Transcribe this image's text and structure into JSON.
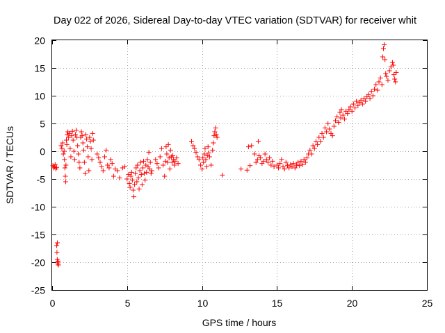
{
  "chart_data": {
    "type": "scatter",
    "title": "Day 022 of 2026, Sidereal Day-to-day VTEC variation (SDTVAR) for receiver whit",
    "xlabel": "GPS time / hours",
    "ylabel": "SDTVAR / TECUs",
    "xlim": [
      0,
      25
    ],
    "ylim": [
      -25,
      20
    ],
    "x_ticks": [
      0,
      5,
      10,
      15,
      20,
      25
    ],
    "x_tick_labels": [
      "0",
      "5",
      "10",
      "15",
      "20",
      "25"
    ],
    "y_ticks": [
      -25,
      -20,
      -15,
      -10,
      -5,
      0,
      5,
      10,
      15,
      20
    ],
    "y_tick_labels": [
      "-25",
      "-20",
      "-15",
      "-10",
      "-5",
      "0",
      "5",
      "10",
      "15",
      "20"
    ],
    "grid": true,
    "marker": "plus",
    "series": [
      {
        "name": "SDTVAR",
        "color": "#ff0000",
        "points": [
          [
            0.05,
            -2.6
          ],
          [
            0.1,
            -3.0
          ],
          [
            0.15,
            -2.8
          ],
          [
            0.2,
            -2.4
          ],
          [
            0.25,
            -3.2
          ],
          [
            0.3,
            -2.9
          ],
          [
            0.3,
            -17.0
          ],
          [
            0.32,
            -18.2
          ],
          [
            0.34,
            -19.5
          ],
          [
            0.36,
            -20.0
          ],
          [
            0.38,
            -20.3
          ],
          [
            0.4,
            -19.8
          ],
          [
            0.42,
            -20.5
          ],
          [
            0.35,
            -16.5
          ],
          [
            0.6,
            1.0
          ],
          [
            0.65,
            0.5
          ],
          [
            0.7,
            1.5
          ],
          [
            0.75,
            -0.5
          ],
          [
            0.8,
            0.0
          ],
          [
            0.82,
            -1.5
          ],
          [
            0.85,
            -3.0
          ],
          [
            0.88,
            -4.5
          ],
          [
            0.9,
            -5.5
          ],
          [
            0.92,
            -2.5
          ],
          [
            0.95,
            2.0
          ],
          [
            0.98,
            1.2
          ],
          [
            1.0,
            3.0
          ],
          [
            1.05,
            3.5
          ],
          [
            1.1,
            2.5
          ],
          [
            1.15,
            3.2
          ],
          [
            1.2,
            0.5
          ],
          [
            1.25,
            -1.0
          ],
          [
            1.3,
            2.8
          ],
          [
            1.35,
            3.6
          ],
          [
            1.4,
            2.0
          ],
          [
            1.45,
            0.0
          ],
          [
            1.5,
            -1.5
          ],
          [
            1.55,
            3.0
          ],
          [
            1.6,
            3.8
          ],
          [
            1.65,
            2.5
          ],
          [
            1.7,
            1.0
          ],
          [
            1.75,
            -0.5
          ],
          [
            1.8,
            -2.0
          ],
          [
            1.85,
            -3.0
          ],
          [
            1.9,
            2.5
          ],
          [
            1.95,
            3.5
          ],
          [
            2.0,
            2.8
          ],
          [
            2.05,
            1.5
          ],
          [
            2.1,
            0.2
          ],
          [
            2.15,
            -2.0
          ],
          [
            2.2,
            -4.0
          ],
          [
            2.25,
            3.0
          ],
          [
            2.3,
            2.2
          ],
          [
            2.35,
            0.8
          ],
          [
            2.4,
            -1.0
          ],
          [
            2.45,
            -3.5
          ],
          [
            2.5,
            2.5
          ],
          [
            2.55,
            1.8
          ],
          [
            2.6,
            0.5
          ],
          [
            2.65,
            -1.5
          ],
          [
            2.7,
            3.2
          ],
          [
            2.75,
            2.0
          ],
          [
            3.0,
            -0.5
          ],
          [
            3.1,
            -1.2
          ],
          [
            3.2,
            -2.0
          ],
          [
            3.3,
            -2.8
          ],
          [
            3.4,
            -3.5
          ],
          [
            3.5,
            -1.0
          ],
          [
            3.6,
            0.2
          ],
          [
            3.7,
            -2.5
          ],
          [
            3.8,
            -3.0
          ],
          [
            3.9,
            -1.5
          ],
          [
            4.0,
            -2.2
          ],
          [
            4.1,
            -4.5
          ],
          [
            4.2,
            -3.2
          ],
          [
            4.35,
            -3.5
          ],
          [
            4.5,
            -4.8
          ],
          [
            4.7,
            -3.0
          ],
          [
            4.85,
            -2.8
          ],
          [
            5.0,
            -5.0
          ],
          [
            5.1,
            -4.2
          ],
          [
            5.15,
            -5.8
          ],
          [
            5.2,
            -6.5
          ],
          [
            5.25,
            -4.5
          ],
          [
            5.3,
            -3.8
          ],
          [
            5.35,
            -5.2
          ],
          [
            5.4,
            -7.0
          ],
          [
            5.45,
            -8.2
          ],
          [
            5.5,
            -6.0
          ],
          [
            5.55,
            -4.0
          ],
          [
            5.6,
            -3.0
          ],
          [
            5.65,
            -5.5
          ],
          [
            5.7,
            -2.5
          ],
          [
            5.75,
            -4.8
          ],
          [
            5.8,
            -6.8
          ],
          [
            5.85,
            -3.5
          ],
          [
            5.9,
            -2.0
          ],
          [
            5.95,
            -4.2
          ],
          [
            6.0,
            -6.0
          ],
          [
            6.05,
            -3.0
          ],
          [
            6.1,
            -1.8
          ],
          [
            6.15,
            -4.0
          ],
          [
            6.2,
            -5.2
          ],
          [
            6.25,
            -2.5
          ],
          [
            6.3,
            -3.8
          ],
          [
            6.35,
            -1.5
          ],
          [
            6.4,
            -2.8
          ],
          [
            6.45,
            -0.2
          ],
          [
            6.5,
            -3.2
          ],
          [
            6.55,
            -2.0
          ],
          [
            6.6,
            -4.0
          ],
          [
            6.65,
            -3.5
          ],
          [
            6.9,
            -1.5
          ],
          [
            7.0,
            -2.2
          ],
          [
            7.1,
            -3.0
          ],
          [
            7.2,
            -1.0
          ],
          [
            7.3,
            0.5
          ],
          [
            7.4,
            -2.5
          ],
          [
            7.5,
            -4.5
          ],
          [
            7.55,
            -1.8
          ],
          [
            7.6,
            0.8
          ],
          [
            7.65,
            -0.5
          ],
          [
            7.7,
            -2.0
          ],
          [
            7.75,
            1.2
          ],
          [
            7.8,
            -1.2
          ],
          [
            7.85,
            -3.2
          ],
          [
            7.9,
            0.2
          ],
          [
            7.95,
            -1.0
          ],
          [
            8.0,
            -2.0
          ],
          [
            8.05,
            -0.8
          ],
          [
            8.1,
            -1.5
          ],
          [
            8.15,
            -2.5
          ],
          [
            8.2,
            -1.8
          ],
          [
            8.3,
            -1.2
          ],
          [
            8.4,
            -2.2
          ],
          [
            9.3,
            1.8
          ],
          [
            9.4,
            1.0
          ],
          [
            9.5,
            0.5
          ],
          [
            9.6,
            -0.2
          ],
          [
            9.7,
            -1.0
          ],
          [
            9.8,
            -1.5
          ],
          [
            9.9,
            -2.5
          ],
          [
            10.0,
            -3.2
          ],
          [
            10.05,
            -1.2
          ],
          [
            10.1,
            -2.0
          ],
          [
            10.15,
            -0.5
          ],
          [
            10.2,
            0.5
          ],
          [
            10.25,
            -1.5
          ],
          [
            10.3,
            -2.8
          ],
          [
            10.35,
            -0.8
          ],
          [
            10.4,
            0.8
          ],
          [
            10.45,
            -0.3
          ],
          [
            10.5,
            -1.0
          ],
          [
            10.6,
            -2.5
          ],
          [
            10.7,
            0.2
          ],
          [
            10.75,
            1.5
          ],
          [
            10.8,
            2.8
          ],
          [
            10.85,
            3.5
          ],
          [
            10.9,
            4.2
          ],
          [
            10.95,
            3.0
          ],
          [
            11.0,
            2.5
          ],
          [
            11.35,
            -4.3
          ],
          [
            12.6,
            -3.2
          ],
          [
            13.0,
            -3.4
          ],
          [
            13.2,
            -2.6
          ],
          [
            13.1,
            0.8
          ],
          [
            13.3,
            1.0
          ],
          [
            13.5,
            -0.5
          ],
          [
            13.6,
            -2.0
          ],
          [
            13.7,
            -1.5
          ],
          [
            13.75,
            1.8
          ],
          [
            13.8,
            -0.8
          ],
          [
            13.9,
            -1.2
          ],
          [
            14.0,
            -2.2
          ],
          [
            14.1,
            -1.8
          ],
          [
            14.2,
            -0.5
          ],
          [
            14.3,
            -1.5
          ],
          [
            14.4,
            -2.0
          ],
          [
            14.5,
            -1.2
          ],
          [
            14.6,
            -2.5
          ],
          [
            14.7,
            -1.8
          ],
          [
            14.8,
            -2.8
          ],
          [
            15.0,
            -2.5
          ],
          [
            15.1,
            -3.0
          ],
          [
            15.2,
            -2.2
          ],
          [
            15.3,
            -1.5
          ],
          [
            15.4,
            -2.8
          ],
          [
            15.5,
            -3.2
          ],
          [
            15.6,
            -2.0
          ],
          [
            15.7,
            -2.6
          ],
          [
            15.8,
            -3.0
          ],
          [
            15.9,
            -2.4
          ],
          [
            16.0,
            -2.8
          ],
          [
            16.1,
            -2.2
          ],
          [
            16.2,
            -3.0
          ],
          [
            16.3,
            -2.5
          ],
          [
            16.4,
            -2.0
          ],
          [
            16.5,
            -2.6
          ],
          [
            16.6,
            -1.8
          ],
          [
            16.7,
            -2.4
          ],
          [
            16.8,
            -1.5
          ],
          [
            16.9,
            -2.0
          ],
          [
            17.0,
            -1.2
          ],
          [
            17.1,
            -0.5
          ],
          [
            17.2,
            0.2
          ],
          [
            17.3,
            -0.5
          ],
          [
            17.4,
            1.0
          ],
          [
            17.5,
            0.5
          ],
          [
            17.6,
            1.8
          ],
          [
            17.7,
            1.2
          ],
          [
            17.8,
            2.5
          ],
          [
            17.9,
            1.8
          ],
          [
            18.0,
            3.2
          ],
          [
            18.1,
            2.5
          ],
          [
            18.2,
            4.2
          ],
          [
            18.3,
            3.5
          ],
          [
            18.4,
            5.0
          ],
          [
            18.5,
            4.0
          ],
          [
            18.6,
            3.2
          ],
          [
            18.7,
            2.8
          ],
          [
            18.8,
            4.5
          ],
          [
            18.9,
            5.5
          ],
          [
            19.0,
            6.2
          ],
          [
            19.1,
            5.2
          ],
          [
            19.2,
            7.0
          ],
          [
            19.25,
            6.0
          ],
          [
            19.3,
            7.5
          ],
          [
            19.4,
            6.5
          ],
          [
            19.5,
            5.8
          ],
          [
            19.6,
            7.2
          ],
          [
            19.7,
            6.8
          ],
          [
            19.8,
            7.5
          ],
          [
            19.9,
            8.0
          ],
          [
            20.0,
            7.2
          ],
          [
            20.1,
            8.5
          ],
          [
            20.2,
            7.8
          ],
          [
            20.3,
            9.0
          ],
          [
            20.4,
            8.2
          ],
          [
            20.5,
            8.8
          ],
          [
            20.6,
            9.2
          ],
          [
            20.7,
            8.5
          ],
          [
            20.8,
            9.5
          ],
          [
            20.9,
            9.0
          ],
          [
            21.0,
            9.8
          ],
          [
            21.1,
            10.2
          ],
          [
            21.2,
            9.5
          ],
          [
            21.3,
            10.8
          ],
          [
            21.4,
            10.0
          ],
          [
            21.5,
            11.2
          ],
          [
            21.6,
            12.0
          ],
          [
            21.7,
            11.0
          ],
          [
            21.8,
            12.5
          ],
          [
            21.9,
            13.2
          ],
          [
            22.0,
            12.0
          ],
          [
            22.05,
            17.0
          ],
          [
            22.1,
            18.5
          ],
          [
            22.15,
            19.2
          ],
          [
            22.2,
            16.5
          ],
          [
            22.25,
            14.0
          ],
          [
            22.3,
            13.5
          ],
          [
            22.4,
            12.8
          ],
          [
            22.5,
            14.5
          ],
          [
            22.6,
            15.2
          ],
          [
            22.7,
            16.0
          ],
          [
            22.75,
            15.5
          ],
          [
            22.8,
            13.8
          ],
          [
            22.85,
            13.0
          ],
          [
            22.9,
            12.5
          ],
          [
            22.95,
            14.2
          ]
        ]
      }
    ]
  }
}
